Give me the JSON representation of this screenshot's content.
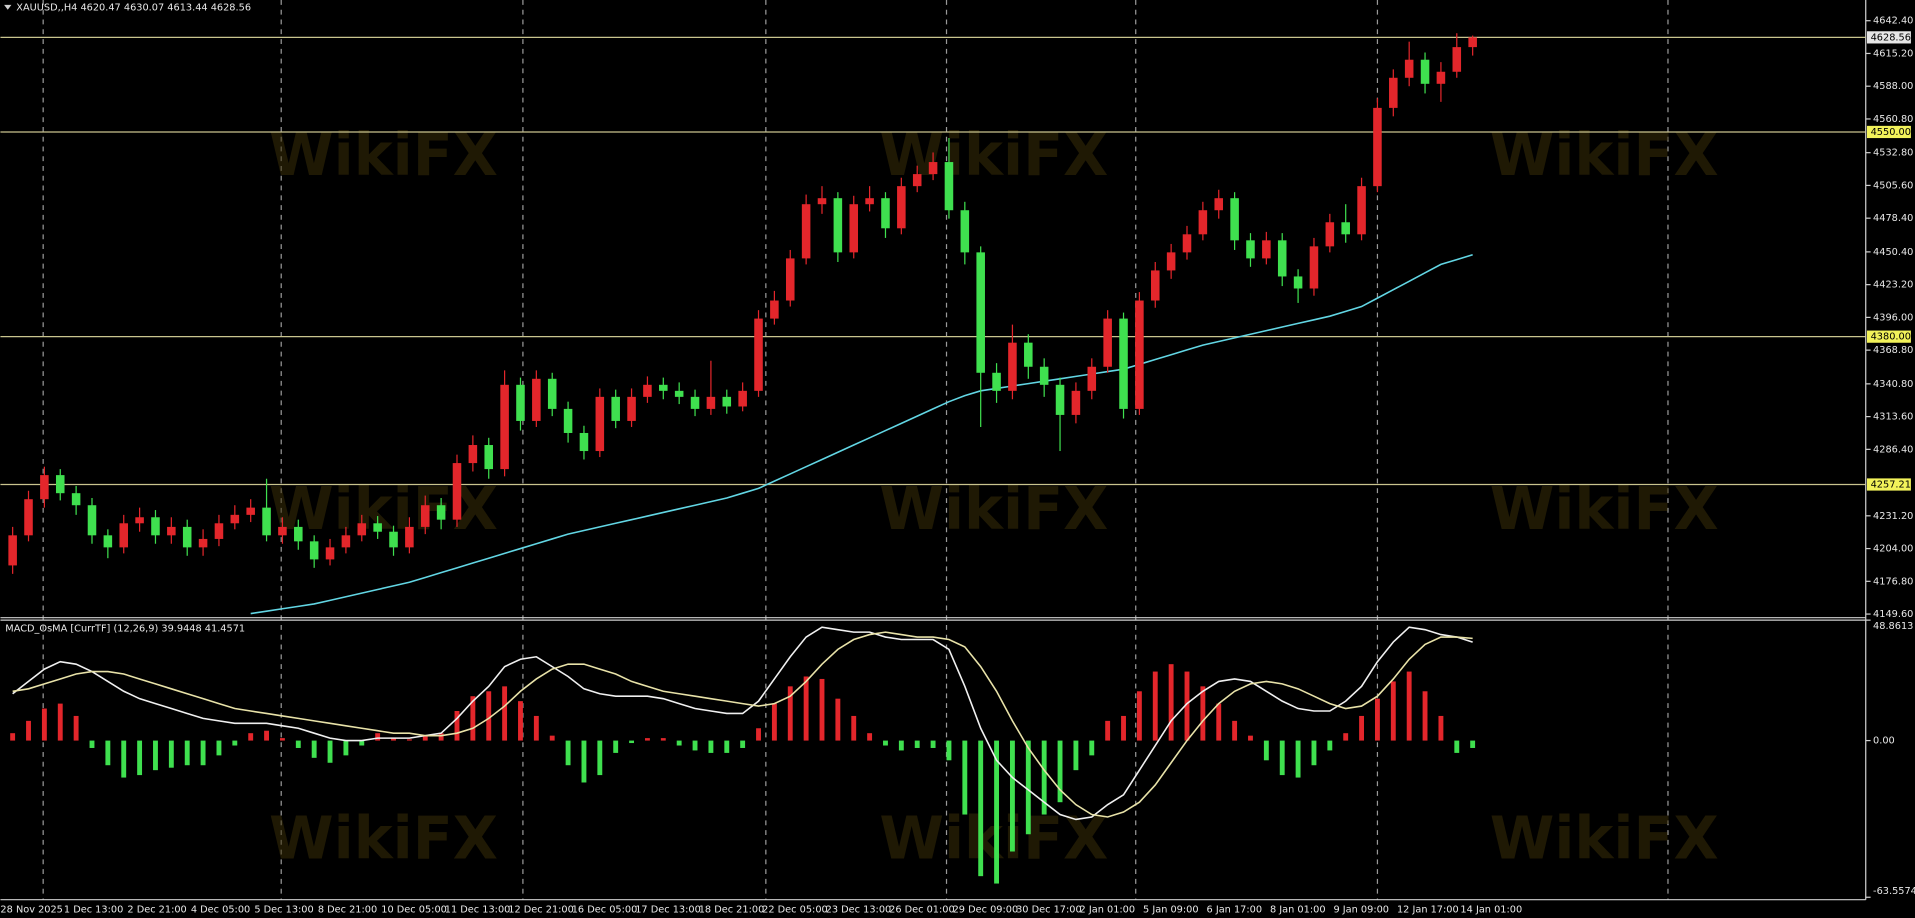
{
  "chart_data": [
    {
      "type": "candlestick",
      "title": "XAUUSD,,H4 4620.47 4630.07 4613.44 4628.56",
      "watermark": "WikiFX",
      "up_color": "#e3262b",
      "down_color": "#3fe04f",
      "open": [
        4190,
        4215,
        4245,
        4265,
        4250,
        4240,
        4215,
        4205,
        4225,
        4230,
        4215,
        4222,
        4205,
        4212,
        4225,
        4232,
        4238,
        4215,
        4222,
        4210,
        4195,
        4205,
        4215,
        4225,
        4218,
        4205,
        4222,
        4240,
        4228,
        4275,
        4290,
        4270,
        4340,
        4310,
        4345,
        4320,
        4300,
        4285,
        4330,
        4310,
        4330,
        4340,
        4335,
        4330,
        4320,
        4330,
        4322,
        4335,
        4395,
        4410,
        4445,
        4490,
        4495,
        4450,
        4490,
        4495,
        4470,
        4505,
        4515,
        4525,
        4485,
        4450,
        4350,
        4335,
        4375,
        4355,
        4340,
        4315,
        4335,
        4355,
        4395,
        4320,
        4410,
        4435,
        4450,
        4465,
        4485,
        4495,
        4460,
        4445,
        4460,
        4430,
        4420,
        4455,
        4475,
        4465,
        4505,
        4570,
        4595,
        4610,
        4590,
        4600,
        4620.47
      ],
      "high": [
        4222,
        4252,
        4272,
        4270,
        4256,
        4246,
        4220,
        4232,
        4238,
        4236,
        4230,
        4228,
        4220,
        4232,
        4240,
        4245,
        4262,
        4230,
        4228,
        4215,
        4212,
        4222,
        4232,
        4231,
        4223,
        4230,
        4248,
        4246,
        4282,
        4298,
        4296,
        4352,
        4346,
        4352,
        4350,
        4326,
        4306,
        4337,
        4336,
        4337,
        4347,
        4346,
        4342,
        4336,
        4360,
        4336,
        4342,
        4402,
        4418,
        4452,
        4498,
        4505,
        4500,
        4497,
        4505,
        4500,
        4512,
        4522,
        4533,
        4545,
        4492,
        4455,
        4358,
        4390,
        4382,
        4362,
        4346,
        4342,
        4362,
        4402,
        4400,
        4417,
        4442,
        4457,
        4472,
        4492,
        4502,
        4500,
        4466,
        4467,
        4466,
        4436,
        4462,
        4482,
        4490,
        4512,
        4578,
        4602,
        4625,
        4616,
        4608,
        4632,
        4630.07
      ],
      "low": [
        4183,
        4210,
        4238,
        4244,
        4232,
        4208,
        4196,
        4200,
        4218,
        4208,
        4208,
        4198,
        4198,
        4206,
        4220,
        4226,
        4210,
        4208,
        4203,
        4188,
        4190,
        4200,
        4210,
        4212,
        4198,
        4200,
        4216,
        4220,
        4222,
        4268,
        4262,
        4264,
        4302,
        4305,
        4314,
        4292,
        4278,
        4280,
        4304,
        4305,
        4325,
        4328,
        4324,
        4314,
        4315,
        4316,
        4318,
        4330,
        4390,
        4405,
        4440,
        4482,
        4442,
        4445,
        4484,
        4462,
        4465,
        4500,
        4510,
        4478,
        4440,
        4305,
        4325,
        4328,
        4345,
        4330,
        4285,
        4308,
        4328,
        4350,
        4312,
        4315,
        4404,
        4428,
        4444,
        4460,
        4478,
        4452,
        4438,
        4440,
        4422,
        4408,
        4414,
        4450,
        4458,
        4460,
        4500,
        4563,
        4588,
        4582,
        4575,
        4595,
        4613.44
      ],
      "close": [
        4215,
        4245,
        4265,
        4250,
        4240,
        4215,
        4205,
        4225,
        4230,
        4215,
        4222,
        4205,
        4212,
        4225,
        4232,
        4238,
        4215,
        4222,
        4210,
        4195,
        4205,
        4215,
        4225,
        4218,
        4205,
        4222,
        4240,
        4228,
        4275,
        4290,
        4270,
        4340,
        4310,
        4345,
        4320,
        4300,
        4285,
        4330,
        4310,
        4330,
        4340,
        4335,
        4330,
        4320,
        4330,
        4322,
        4335,
        4395,
        4410,
        4445,
        4490,
        4495,
        4450,
        4490,
        4495,
        4470,
        4505,
        4515,
        4525,
        4485,
        4450,
        4350,
        4335,
        4375,
        4355,
        4340,
        4315,
        4335,
        4355,
        4395,
        4320,
        4410,
        4435,
        4450,
        4465,
        4485,
        4495,
        4460,
        4445,
        4460,
        4430,
        4420,
        4455,
        4475,
        4465,
        4505,
        4570,
        4595,
        4610,
        4590,
        4600,
        4620.47,
        4628.56
      ],
      "ma_line": {
        "color": "#62d6e4",
        "values": [
          null,
          null,
          null,
          null,
          null,
          null,
          null,
          null,
          null,
          null,
          null,
          null,
          null,
          null,
          null,
          4150,
          4152,
          4154,
          4156,
          4158,
          4161,
          4164,
          4167,
          4170,
          4173,
          4176,
          4180,
          4184,
          4188,
          4192,
          4196,
          4200,
          4204,
          4208,
          4212,
          4216,
          4219,
          4222,
          4225,
          4228,
          4231,
          4234,
          4237,
          4240,
          4243,
          4246,
          4250,
          4254,
          4260,
          4266,
          4272,
          4278,
          4284,
          4290,
          4296,
          4302,
          4308,
          4314,
          4320,
          4326,
          4331,
          4335,
          4337,
          4339,
          4341,
          4343,
          4345,
          4347,
          4349,
          4351,
          4353,
          4357,
          4361,
          4365,
          4369,
          4373,
          4376,
          4379,
          4382,
          4385,
          4388,
          4391,
          4394,
          4397,
          4401,
          4405,
          4412,
          4419,
          4426,
          4433,
          4440,
          4444,
          4448
        ]
      },
      "levels": [
        {
          "value": 4628.56,
          "label": "4628.56",
          "color": "#e6e6e6"
        },
        {
          "value": 4550,
          "label": "4550.00",
          "color": "#f2f25a"
        },
        {
          "value": 4380,
          "label": "4380.00",
          "color": "#f2f25a"
        },
        {
          "value": 4257.21,
          "label": "4257.21",
          "color": "#f2f25a"
        }
      ],
      "level_line_color": "#c9c48e",
      "ylim": [
        4147.6,
        4659.6
      ],
      "yticks": [
        {
          "value": 4642.4,
          "label": "4642.40"
        },
        {
          "value": 4615.2,
          "label": "4615.20"
        },
        {
          "value": 4588,
          "label": "4588.00"
        },
        {
          "value": 4560.8,
          "label": "4560.80"
        },
        {
          "value": 4532.8,
          "label": "4532.80"
        },
        {
          "value": 4505.6,
          "label": "4505.60"
        },
        {
          "value": 4478.4,
          "label": "4478.40"
        },
        {
          "value": 4450.4,
          "label": "4450.40"
        },
        {
          "value": 4423.2,
          "label": "4423.20"
        },
        {
          "value": 4396,
          "label": "4396.00"
        },
        {
          "value": 4368.8,
          "label": "4368.80"
        },
        {
          "value": 4340.8,
          "label": "4340.80"
        },
        {
          "value": 4313.6,
          "label": "4313.60"
        },
        {
          "value": 4286.4,
          "label": "4286.40"
        },
        {
          "value": 4231.2,
          "label": "4231.20"
        },
        {
          "value": 4204,
          "label": "4204.00"
        },
        {
          "value": 4176.8,
          "label": "4176.80"
        },
        {
          "value": 4149.6,
          "label": "4149.60"
        }
      ],
      "xlabels": [
        "28 Nov 2025",
        "1 Dec 13:00",
        "2 Dec 21:00",
        "4 Dec 05:00",
        "5 Dec 13:00",
        "8 Dec 21:00",
        "10 Dec 05:00",
        "11 Dec 13:00",
        "12 Dec 21:00",
        "16 Dec 05:00",
        "17 Dec 13:00",
        "18 Dec 21:00",
        "22 Dec 05:00",
        "23 Dec 13:00",
        "26 Dec 01:00",
        "29 Dec 09:00",
        "30 Dec 17:00",
        "2 Jan 01:00",
        "5 Jan 09:00",
        "6 Jan 17:00",
        "8 Jan 01:00",
        "9 Jan 09:00",
        "12 Jan 17:00",
        "14 Jan 01:00"
      ]
    },
    {
      "type": "bar",
      "title": "MACD_OsMA [CurrTF] (12,26,9) 39.9448 41.4571",
      "pos_color": "#e3262b",
      "neg_color": "#3fe04f",
      "values": [
        3,
        8,
        13,
        15,
        10,
        -3,
        -10,
        -15,
        -14,
        -12,
        -11,
        -10,
        -10,
        -6,
        -2,
        3,
        4,
        1,
        -3,
        -7,
        -9,
        -6,
        -2,
        3,
        1,
        0.5,
        2,
        3,
        12,
        18,
        20,
        22,
        16,
        10,
        2,
        -10,
        -17,
        -14,
        -5,
        -1,
        1,
        1,
        -2,
        -4,
        -5,
        -5,
        -3,
        5,
        15,
        22,
        26,
        25,
        17,
        10,
        3,
        -2,
        -4,
        -3,
        -3,
        -8,
        -30,
        -55,
        -58,
        -45,
        -38,
        -30,
        -25,
        -12,
        -6,
        8,
        10,
        20,
        28,
        31,
        28,
        22,
        15,
        8,
        2,
        -8,
        -14,
        -15,
        -10,
        -4,
        3,
        10,
        17,
        24,
        28,
        20,
        10,
        -5,
        -3
      ],
      "lines": [
        {
          "color": "#f0f0f0",
          "values": [
            19,
            24,
            29,
            32,
            31,
            28,
            24,
            20,
            17,
            15,
            13,
            11,
            9,
            8,
            7,
            7,
            7,
            6,
            5,
            3,
            1,
            0,
            0,
            1,
            1,
            1,
            2,
            3,
            9,
            16,
            22,
            30,
            33,
            34,
            30,
            26,
            21,
            19,
            18,
            18,
            18,
            17,
            15,
            13,
            12,
            11,
            11,
            16,
            25,
            34,
            42,
            46,
            45,
            44,
            44,
            42,
            41,
            41,
            41,
            37,
            22,
            5,
            -8,
            -15,
            -20,
            -25,
            -30,
            -32,
            -31,
            -26,
            -22,
            -12,
            -2,
            8,
            15,
            20,
            24,
            25,
            24,
            20,
            16,
            13,
            12,
            12,
            16,
            22,
            32,
            40,
            46,
            45,
            43,
            42,
            39.9448
          ]
        },
        {
          "color": "#e8e2a8",
          "values": [
            20,
            21,
            23,
            25,
            27,
            28,
            28,
            27,
            25,
            23,
            21,
            19,
            17,
            15,
            13,
            12,
            11,
            10,
            9,
            8,
            7,
            6,
            5,
            4,
            3,
            3,
            2,
            2,
            3,
            5,
            9,
            14,
            20,
            25,
            29,
            31,
            31,
            29,
            27,
            24,
            22,
            20,
            19,
            18,
            17,
            16,
            15,
            14,
            15,
            18,
            24,
            31,
            37,
            41,
            43,
            44,
            43,
            42,
            42,
            41,
            38,
            30,
            20,
            8,
            -3,
            -12,
            -20,
            -26,
            -30,
            -31,
            -29,
            -25,
            -18,
            -9,
            0,
            8,
            15,
            20,
            23,
            24,
            23,
            21,
            18,
            15,
            13,
            14,
            18,
            25,
            33,
            39,
            42,
            42,
            41.4571
          ]
        }
      ],
      "ylim": [
        -63.5574,
        48.8613
      ],
      "yticks": [
        {
          "value": 48.8613,
          "label": "48.8613"
        },
        {
          "value": 0,
          "label": "0.00"
        },
        {
          "value": -63.5574,
          "label": "-63.5574"
        }
      ]
    }
  ]
}
